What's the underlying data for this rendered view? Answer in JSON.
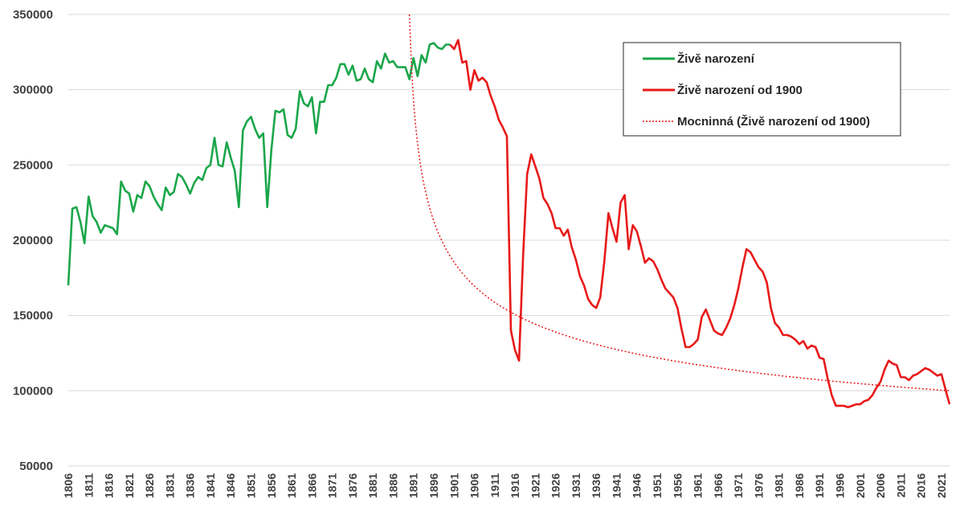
{
  "chart_data": {
    "type": "line",
    "title": "",
    "xlabel": "",
    "ylabel": "",
    "ylim": [
      50000,
      350000
    ],
    "yticks": [
      "50000",
      "100000",
      "150000",
      "200000",
      "250000",
      "300000",
      "350000"
    ],
    "xlim": [
      1806,
      2023
    ],
    "xticks": [
      "1806",
      "1811",
      "1816",
      "1821",
      "1826",
      "1831",
      "1836",
      "1841",
      "1846",
      "1851",
      "1856",
      "1861",
      "1866",
      "1871",
      "1876",
      "1881",
      "1886",
      "1891",
      "1896",
      "1901",
      "1906",
      "1911",
      "1916",
      "1921",
      "1926",
      "1931",
      "1936",
      "1941",
      "1946",
      "1951",
      "1956",
      "1961",
      "1966",
      "1971",
      "1976",
      "1981",
      "1986",
      "1991",
      "1996",
      "2001",
      "2006",
      "2011",
      "2016",
      "2021"
    ],
    "grid": "horizontal",
    "legend_position": "top-right",
    "colors": {
      "series1": "#1ba64a",
      "series2": "#e81919",
      "trend": "#e81919",
      "grid": "#d9d9d9"
    },
    "series": [
      {
        "name": "Živě narození",
        "style": "solid",
        "x": [
          1806,
          1807,
          1808,
          1809,
          1810,
          1811,
          1812,
          1813,
          1814,
          1815,
          1816,
          1817,
          1818,
          1819,
          1820,
          1821,
          1822,
          1823,
          1824,
          1825,
          1826,
          1827,
          1828,
          1829,
          1830,
          1831,
          1832,
          1833,
          1834,
          1835,
          1836,
          1837,
          1838,
          1839,
          1840,
          1841,
          1842,
          1843,
          1844,
          1845,
          1846,
          1847,
          1848,
          1849,
          1850,
          1851,
          1852,
          1853,
          1854,
          1855,
          1856,
          1857,
          1858,
          1859,
          1860,
          1861,
          1862,
          1863,
          1864,
          1865,
          1866,
          1867,
          1868,
          1869,
          1870,
          1871,
          1872,
          1873,
          1874,
          1875,
          1876,
          1877,
          1878,
          1879,
          1880,
          1881,
          1882,
          1883,
          1884,
          1885,
          1886,
          1887,
          1888,
          1889,
          1890,
          1891,
          1892,
          1893,
          1894,
          1895,
          1896,
          1897,
          1898,
          1899,
          1900
        ],
        "values": [
          170000,
          221000,
          222000,
          212000,
          198000,
          229000,
          216000,
          212000,
          205000,
          210000,
          209000,
          208000,
          204000,
          239000,
          233000,
          231000,
          219000,
          230000,
          228000,
          239000,
          236000,
          229000,
          224000,
          220000,
          235000,
          230000,
          232000,
          244000,
          242000,
          237000,
          231000,
          238000,
          242000,
          240000,
          248000,
          250000,
          268000,
          250000,
          249000,
          265000,
          255000,
          246000,
          222000,
          273000,
          279000,
          282000,
          274000,
          268000,
          271000,
          222000,
          260000,
          286000,
          285000,
          287000,
          270000,
          268000,
          274000,
          299000,
          291000,
          289000,
          295000,
          271000,
          292000,
          292000,
          303000,
          303000,
          308000,
          317000,
          317000,
          310000,
          316000,
          306000,
          307000,
          314000,
          307000,
          305000,
          319000,
          314000,
          324000,
          318000,
          319000,
          315000,
          315000,
          315000,
          307000,
          321000,
          309000,
          323000,
          318000,
          330000,
          331000,
          328000,
          327000,
          330000,
          330000
        ]
      },
      {
        "name": "Živě narození od 1900",
        "style": "solid",
        "x": [
          1900,
          1901,
          1902,
          1903,
          1904,
          1905,
          1906,
          1907,
          1908,
          1909,
          1910,
          1911,
          1912,
          1913,
          1914,
          1915,
          1916,
          1917,
          1918,
          1919,
          1920,
          1921,
          1922,
          1923,
          1924,
          1925,
          1926,
          1927,
          1928,
          1929,
          1930,
          1931,
          1932,
          1933,
          1934,
          1935,
          1936,
          1937,
          1938,
          1939,
          1940,
          1941,
          1942,
          1943,
          1944,
          1945,
          1946,
          1947,
          1948,
          1949,
          1950,
          1951,
          1952,
          1953,
          1954,
          1955,
          1956,
          1957,
          1958,
          1959,
          1960,
          1961,
          1962,
          1963,
          1964,
          1965,
          1966,
          1967,
          1968,
          1969,
          1970,
          1971,
          1972,
          1973,
          1974,
          1975,
          1976,
          1977,
          1978,
          1979,
          1980,
          1981,
          1982,
          1983,
          1984,
          1985,
          1986,
          1987,
          1988,
          1989,
          1990,
          1991,
          1992,
          1993,
          1994,
          1995,
          1996,
          1997,
          1998,
          1999,
          2000,
          2001,
          2002,
          2003,
          2004,
          2005,
          2006,
          2007,
          2008,
          2009,
          2010,
          2011,
          2012,
          2013,
          2014,
          2015,
          2016,
          2017,
          2018,
          2019,
          2020,
          2021,
          2022,
          2023
        ],
        "values": [
          330000,
          327000,
          333000,
          318000,
          319000,
          300000,
          313000,
          306000,
          308000,
          305000,
          296000,
          289000,
          280000,
          275000,
          269000,
          140000,
          127000,
          120000,
          190000,
          244000,
          257000,
          249000,
          241000,
          228000,
          224000,
          218000,
          208000,
          208000,
          203000,
          207000,
          195000,
          187000,
          176000,
          170000,
          161000,
          157000,
          155000,
          162000,
          186000,
          218000,
          208000,
          199000,
          225000,
          230000,
          194000,
          210000,
          206000,
          196000,
          185000,
          188000,
          186000,
          181000,
          174000,
          168000,
          165000,
          162000,
          155000,
          141000,
          129000,
          129000,
          131000,
          134000,
          149000,
          154000,
          147000,
          140000,
          138000,
          137000,
          142000,
          148000,
          157000,
          168000,
          182000,
          194000,
          192000,
          187000,
          182000,
          179000,
          172000,
          155000,
          145000,
          142000,
          137000,
          137000,
          136000,
          134000,
          131000,
          133000,
          128000,
          130000,
          129000,
          122000,
          121000,
          108000,
          97000,
          90000,
          90000,
          90000,
          89000,
          90000,
          91000,
          91000,
          93000,
          94000,
          97000,
          102000,
          106000,
          114000,
          120000,
          118000,
          117000,
          109000,
          109000,
          107000,
          110000,
          111000,
          113000,
          115000,
          114000,
          112000,
          110000,
          111000,
          101000,
          91000
        ]
      },
      {
        "name": "Mocninná (Živě narození od 1900)",
        "style": "dotted",
        "trend": {
          "x0": 1890,
          "x1": 2023,
          "y_at_x0": 350000,
          "y_at_x1": 100000
        }
      }
    ]
  }
}
